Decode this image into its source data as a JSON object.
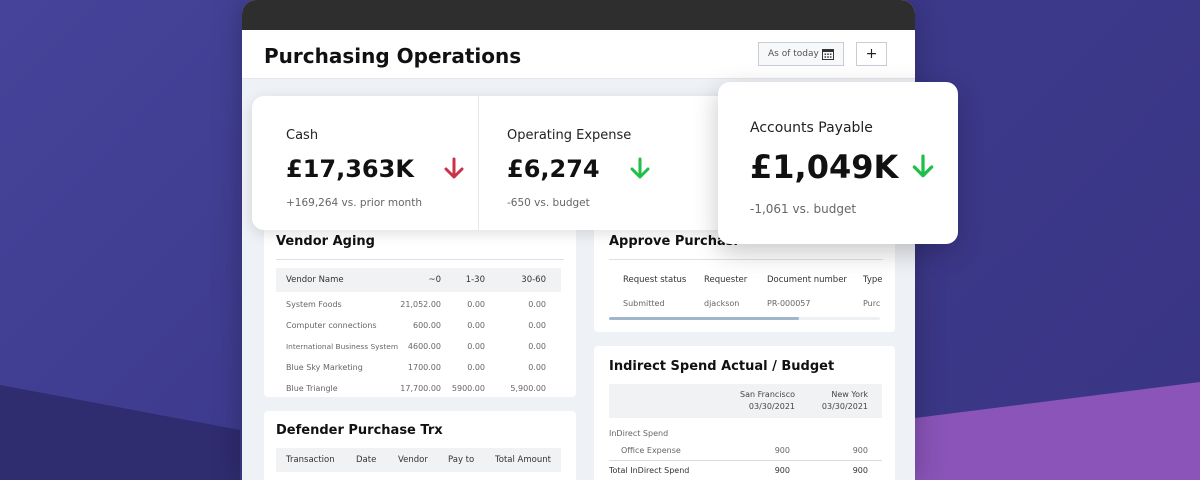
{
  "app": {
    "title": "Purchasing Operations",
    "date_button": "As of today",
    "add_button": "+"
  },
  "kpis": [
    {
      "label": "Cash",
      "value": "£17,363K",
      "trend": "down",
      "trend_color": "#c8334a",
      "sub": "+169,264 vs. prior month"
    },
    {
      "label": "Operating Expense",
      "value": "£6,274",
      "trend": "down",
      "trend_color": "#1fbf4a",
      "sub": "-650 vs. budget"
    },
    {
      "label": "Accounts Payable",
      "value": "£1,049K",
      "trend": "down",
      "trend_color": "#1fbf4a",
      "sub": "-1,061 vs. budget"
    }
  ],
  "vendor_aging": {
    "title": "Vendor Aging",
    "columns": [
      "Vendor Name",
      "~0",
      "1-30",
      "30-60"
    ],
    "rows": [
      [
        "System Foods",
        "21,052.00",
        "0.00",
        "0.00"
      ],
      [
        "Computer connections",
        "600.00",
        "0.00",
        "0.00"
      ],
      [
        "International Business System",
        "4600.00",
        "0.00",
        "0.00"
      ],
      [
        "Blue Sky Marketing",
        "1700.00",
        "0.00",
        "0.00"
      ],
      [
        "Blue Triangle",
        "17,700.00",
        "5900.00",
        "5,900.00"
      ]
    ]
  },
  "defender_purchase": {
    "title": "Defender Purchase Trx",
    "columns": [
      "Transaction",
      "Date",
      "Vendor",
      "Pay to",
      "Total Amount"
    ]
  },
  "approve_purchasing": {
    "title": "Approve Purchasi",
    "columns": [
      "Request status",
      "Requester",
      "Document number",
      "Type"
    ],
    "rows": [
      [
        "Submitted",
        "djackson",
        "PR-000057",
        "Purc"
      ]
    ],
    "scroll_fraction": 0.7
  },
  "indirect_spend": {
    "title": "Indirect Spend Actual / Budget",
    "columns": [
      {
        "name": "San Francisco",
        "date": "03/30/2021"
      },
      {
        "name": "New York",
        "date": "03/30/2021"
      }
    ],
    "rows": [
      {
        "label": "InDirect Spend",
        "values": [
          "",
          ""
        ]
      },
      {
        "label": "Office Expense",
        "values": [
          "900",
          "900"
        ]
      },
      {
        "label": "Total InDirect Spend",
        "values": [
          "900",
          "900"
        ]
      }
    ]
  },
  "colors": {
    "background": "#3e3a8c",
    "accent_purple": "#8a54b8",
    "down_red": "#c8334a",
    "down_green": "#1fbf4a"
  }
}
